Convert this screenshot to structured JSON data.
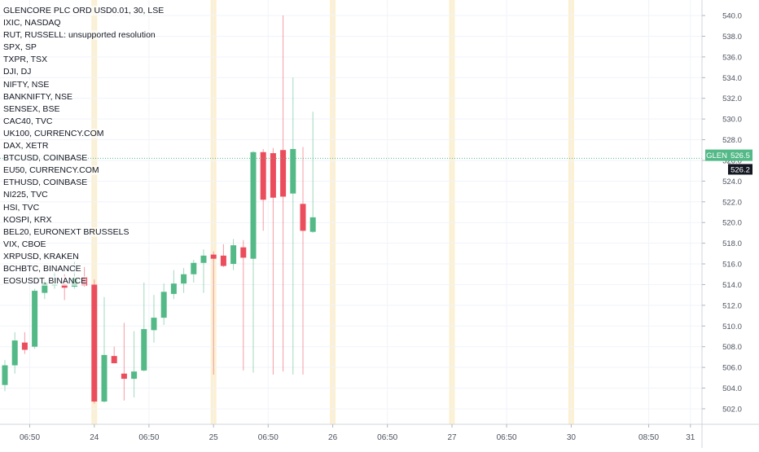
{
  "chart_data": {
    "type": "candlestick",
    "title": "GLENCORE PLC ORD USD0.01, 30, LSE",
    "symbol_list": [
      "IXIC, NASDAQ",
      "RUT, RUSSELL: unsupported resolution",
      "SPX, SP",
      "TXPR, TSX",
      "DJI, DJ",
      "NIFTY, NSE",
      "BANKNIFTY, NSE",
      "SENSEX, BSE",
      "CAC40, TVC",
      "UK100, CURRENCY.COM",
      "DAX, XETR",
      "BTCUSD, COINBASE",
      "EU50, CURRENCY.COM",
      "ETHUSD, COINBASE",
      "NI225, TVC",
      "HSI, TVC",
      "KOSPI, KRX",
      "BEL20, EURONEXT BRUSSELS",
      "VIX, CBOE",
      "XRPUSD, KRAKEN",
      "BCHBTC, BINANCE",
      "EOSUSDT, BINANCE"
    ],
    "y_axis": {
      "ylim": [
        500.5,
        541.5
      ],
      "ticks": [
        "502.0",
        "504.0",
        "506.0",
        "508.0",
        "510.0",
        "512.0",
        "514.0",
        "516.0",
        "518.0",
        "520.0",
        "522.0",
        "524.0",
        "526.0",
        "528.0",
        "530.0",
        "532.0",
        "534.0",
        "536.0",
        "538.0",
        "540.0"
      ],
      "tick_values": [
        502,
        504,
        506,
        508,
        510,
        512,
        514,
        516,
        518,
        520,
        522,
        524,
        526,
        528,
        530,
        532,
        534,
        536,
        538,
        540
      ]
    },
    "x_axis": {
      "labels": [
        {
          "text": "06:50",
          "index": 2.5
        },
        {
          "text": "24",
          "index": 9.0
        },
        {
          "text": "06:50",
          "index": 14.5
        },
        {
          "text": "25",
          "index": 21.0
        },
        {
          "text": "06:50",
          "index": 26.5
        },
        {
          "text": "26",
          "index": 33.0
        },
        {
          "text": "06:50",
          "index": 38.5
        },
        {
          "text": "27",
          "index": 45.0
        },
        {
          "text": "06:50",
          "index": 50.5
        },
        {
          "text": "30",
          "index": 57.0
        },
        {
          "text": "08:50",
          "index": 64.8
        },
        {
          "text": "31",
          "index": 69.0
        }
      ]
    },
    "session_bands": [
      9.0,
      21.0,
      33.0,
      45.0,
      57.0
    ],
    "candles": [
      {
        "o": 504.3,
        "h": 506.7,
        "l": 503.7,
        "c": 506.2
      },
      {
        "o": 506.2,
        "h": 509.4,
        "l": 505.4,
        "c": 508.6
      },
      {
        "o": 508.4,
        "h": 509.4,
        "l": 507.3,
        "c": 507.7
      },
      {
        "o": 508.0,
        "h": 513.6,
        "l": 507.8,
        "c": 513.4
      },
      {
        "o": 513.2,
        "h": 514.5,
        "l": 512.6,
        "c": 514.2
      },
      {
        "o": 513.9,
        "h": 515.2,
        "l": 513.6,
        "c": 514.0
      },
      {
        "o": 514.0,
        "h": 515.0,
        "l": 512.5,
        "c": 513.7
      },
      {
        "o": 513.8,
        "h": 516.2,
        "l": 513.6,
        "c": 514.6
      },
      {
        "o": 514.7,
        "h": 515.7,
        "l": 513.8,
        "c": 513.9
      },
      {
        "o": 514.0,
        "h": 514.5,
        "l": 502.5,
        "c": 502.7
      },
      {
        "o": 502.7,
        "h": 512.8,
        "l": 502.6,
        "c": 507.2
      },
      {
        "o": 507.1,
        "h": 508.0,
        "l": 506.5,
        "c": 506.4
      },
      {
        "o": 505.4,
        "h": 510.3,
        "l": 502.8,
        "c": 504.9
      },
      {
        "o": 504.9,
        "h": 509.5,
        "l": 503.1,
        "c": 505.6
      },
      {
        "o": 505.7,
        "h": 514.2,
        "l": 505.6,
        "c": 509.7
      },
      {
        "o": 509.6,
        "h": 513.0,
        "l": 508.4,
        "c": 510.8
      },
      {
        "o": 510.8,
        "h": 514.1,
        "l": 510.1,
        "c": 513.3
      },
      {
        "o": 513.1,
        "h": 515.4,
        "l": 512.6,
        "c": 514.1
      },
      {
        "o": 514.1,
        "h": 515.6,
        "l": 513.2,
        "c": 515.0
      },
      {
        "o": 515.0,
        "h": 516.4,
        "l": 514.2,
        "c": 516.1
      },
      {
        "o": 516.1,
        "h": 517.4,
        "l": 513.2,
        "c": 516.8
      },
      {
        "o": 516.9,
        "h": 517.2,
        "l": 505.3,
        "c": 516.5
      },
      {
        "o": 516.8,
        "h": 517.9,
        "l": 515.7,
        "c": 515.8
      },
      {
        "o": 516.0,
        "h": 518.4,
        "l": 515.4,
        "c": 517.8
      },
      {
        "o": 517.6,
        "h": 518.3,
        "l": 505.7,
        "c": 516.6
      },
      {
        "o": 516.5,
        "h": 526.9,
        "l": 505.5,
        "c": 526.8
      },
      {
        "o": 526.8,
        "h": 527.1,
        "l": 519.2,
        "c": 522.2
      },
      {
        "o": 526.7,
        "h": 527.2,
        "l": 505.3,
        "c": 522.4
      },
      {
        "o": 527.0,
        "h": 540.0,
        "l": 505.6,
        "c": 522.5
      },
      {
        "o": 522.8,
        "h": 534.0,
        "l": 505.3,
        "c": 527.1
      },
      {
        "o": 521.8,
        "h": 527.3,
        "l": 505.3,
        "c": 519.2
      },
      {
        "o": 519.1,
        "h": 530.7,
        "l": 519.0,
        "c": 520.5
      }
    ]
  },
  "price_labels": {
    "tag": "GLEN",
    "current": "526.5",
    "last": "526.2"
  },
  "colors": {
    "up": "#53b987",
    "down": "#eb4d5c",
    "session_band": "#fdf0cf",
    "grid": "#f0f3fa",
    "axis_text": "#4c525e",
    "price_line": "#53b987"
  }
}
